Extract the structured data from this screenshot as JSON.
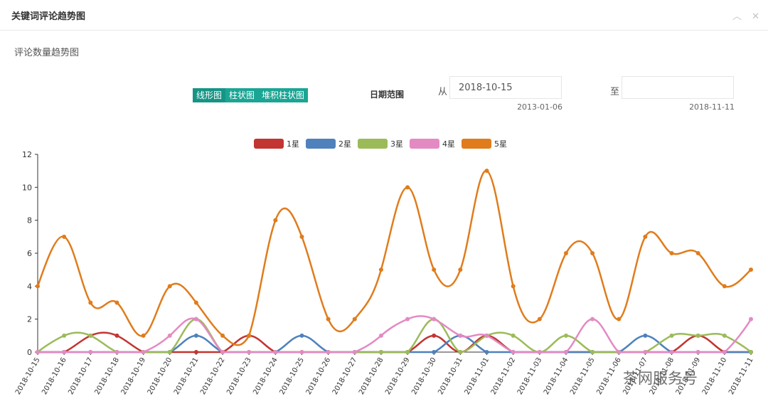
{
  "panel": {
    "title": "关键词评论趋势图",
    "collapse_icon": "chevron-up-icon",
    "close_icon": "close-icon"
  },
  "subtitle": "评论数量趋势图",
  "chart_types": [
    {
      "label": "线形图",
      "active": true
    },
    {
      "label": "柱状图",
      "active": false
    },
    {
      "label": "堆积柱状图",
      "active": false
    }
  ],
  "date_range": {
    "label": "日期范围",
    "from_label": "从",
    "from_value": "2018-10-15",
    "from_hint": "2013-01-06",
    "to_label": "至",
    "to_value": "",
    "to_hint": "2018-11-11"
  },
  "watermark": "茶网服务号",
  "chart_data": {
    "type": "line",
    "smooth": true,
    "legend_position": "top-center",
    "grid": false,
    "ylim": [
      0,
      12
    ],
    "yticks": [
      0,
      2,
      4,
      6,
      8,
      10,
      12
    ],
    "x": [
      "2018-10-15",
      "2018-10-16",
      "2018-10-17",
      "2018-10-18",
      "2018-10-19",
      "2018-10-20",
      "2018-10-21",
      "2018-10-22",
      "2018-10-23",
      "2018-10-24",
      "2018-10-25",
      "2018-10-26",
      "2018-10-27",
      "2018-10-28",
      "2018-10-29",
      "2018-10-30",
      "2018-10-31",
      "2018-11-01",
      "2018-11-02",
      "2018-11-03",
      "2018-11-04",
      "2018-11-05",
      "2018-11-06",
      "2018-11-07",
      "2018-11-08",
      "2018-11-09",
      "2018-11-10",
      "2018-11-11"
    ],
    "series": [
      {
        "name": "1星",
        "color": "#c23531",
        "values": [
          0,
          0,
          1,
          1,
          0,
          0,
          0,
          0,
          1,
          0,
          0,
          0,
          0,
          0,
          0,
          1,
          0,
          1,
          0,
          0,
          0,
          0,
          0,
          0,
          0,
          1,
          0,
          0
        ]
      },
      {
        "name": "2星",
        "color": "#4f81bd",
        "values": [
          0,
          0,
          0,
          0,
          0,
          0,
          1,
          0,
          0,
          0,
          1,
          0,
          0,
          0,
          0,
          0,
          1,
          0,
          0,
          0,
          0,
          0,
          0,
          1,
          0,
          0,
          0,
          0
        ]
      },
      {
        "name": "3星",
        "color": "#9bbb59",
        "values": [
          0,
          1,
          1,
          0,
          0,
          0,
          2,
          0,
          0,
          0,
          0,
          0,
          0,
          0,
          0,
          2,
          0,
          1,
          1,
          0,
          1,
          0,
          0,
          0,
          1,
          1,
          1,
          0
        ]
      },
      {
        "name": "4星",
        "color": "#e38ac3",
        "values": [
          0,
          0,
          0,
          0,
          0,
          1,
          2,
          0,
          0,
          0,
          0,
          0,
          0,
          1,
          2,
          2,
          1,
          1,
          0,
          0,
          0,
          2,
          0,
          0,
          0,
          0,
          0,
          2
        ]
      },
      {
        "name": "5星",
        "color": "#e07c1c",
        "values": [
          4,
          7,
          3,
          3,
          1,
          4,
          3,
          1,
          1,
          8,
          7,
          2,
          2,
          5,
          10,
          5,
          5,
          11,
          4,
          2,
          6,
          6,
          2,
          7,
          6,
          6,
          4,
          5
        ]
      }
    ]
  }
}
